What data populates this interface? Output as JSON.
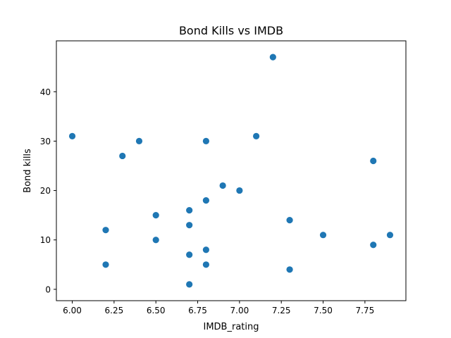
{
  "chart_data": {
    "type": "scatter",
    "title": "Bond Kills vs IMDB",
    "xlabel": "IMDB_rating",
    "ylabel": "Bond kills",
    "xlim": [
      5.905,
      7.995
    ],
    "ylim": [
      -2.3,
      50.3
    ],
    "x_ticks": [
      6.0,
      6.25,
      6.5,
      6.75,
      7.0,
      7.25,
      7.5,
      7.75
    ],
    "x_tick_labels": [
      "6.00",
      "6.25",
      "6.50",
      "6.75",
      "7.00",
      "7.25",
      "7.50",
      "7.75"
    ],
    "y_ticks": [
      0,
      10,
      20,
      30,
      40
    ],
    "y_tick_labels": [
      "0",
      "10",
      "20",
      "30",
      "40"
    ],
    "grid": false,
    "marker_color": "#1f77b4",
    "points": [
      {
        "x": 6.0,
        "y": 31
      },
      {
        "x": 6.2,
        "y": 12
      },
      {
        "x": 6.2,
        "y": 5
      },
      {
        "x": 6.3,
        "y": 27
      },
      {
        "x": 6.4,
        "y": 30
      },
      {
        "x": 6.5,
        "y": 15
      },
      {
        "x": 6.5,
        "y": 10
      },
      {
        "x": 6.7,
        "y": 16
      },
      {
        "x": 6.7,
        "y": 13
      },
      {
        "x": 6.7,
        "y": 7
      },
      {
        "x": 6.7,
        "y": 1
      },
      {
        "x": 6.8,
        "y": 30
      },
      {
        "x": 6.8,
        "y": 18
      },
      {
        "x": 6.8,
        "y": 8
      },
      {
        "x": 6.8,
        "y": 5
      },
      {
        "x": 6.9,
        "y": 21
      },
      {
        "x": 7.0,
        "y": 20
      },
      {
        "x": 7.1,
        "y": 31
      },
      {
        "x": 7.2,
        "y": 47
      },
      {
        "x": 7.3,
        "y": 14
      },
      {
        "x": 7.3,
        "y": 4
      },
      {
        "x": 7.5,
        "y": 11
      },
      {
        "x": 7.8,
        "y": 26
      },
      {
        "x": 7.8,
        "y": 9
      },
      {
        "x": 7.9,
        "y": 11
      }
    ]
  }
}
